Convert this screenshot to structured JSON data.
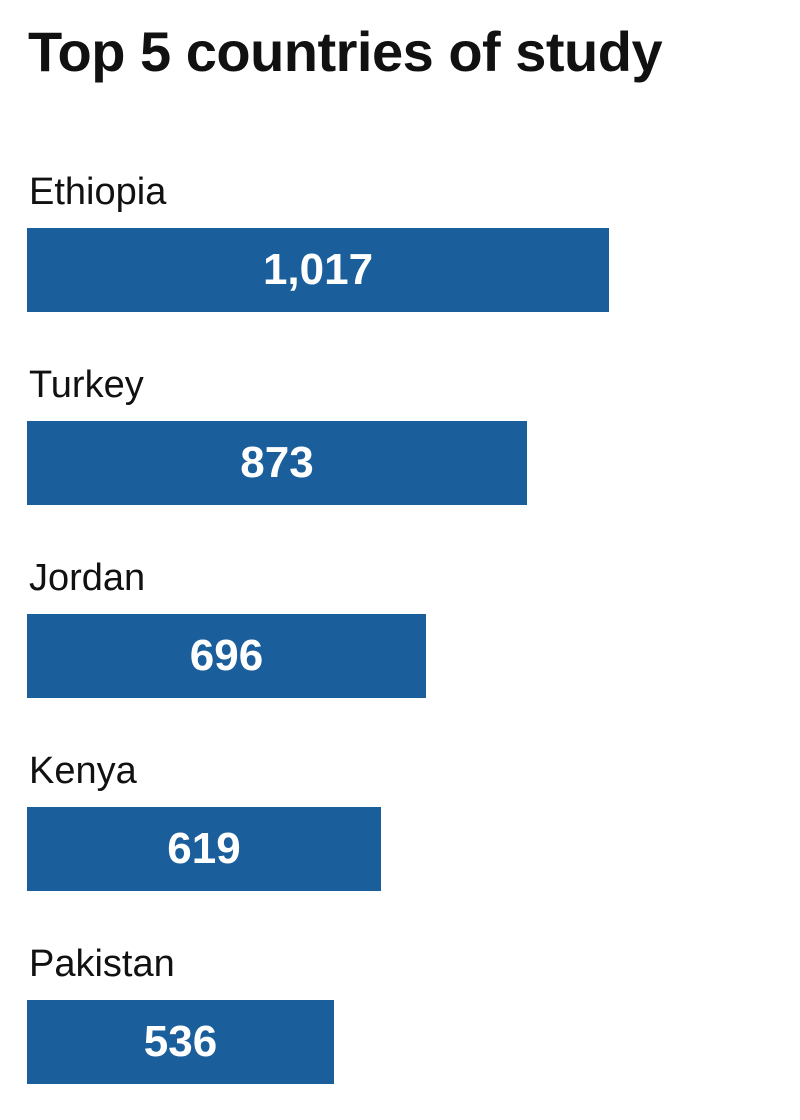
{
  "chart_data": {
    "type": "bar",
    "orientation": "horizontal",
    "title": "Top 5 countries of study",
    "categories": [
      "Ethiopia",
      "Turkey",
      "Jordan",
      "Kenya",
      "Pakistan"
    ],
    "values": [
      1017,
      873,
      696,
      619,
      536
    ],
    "value_labels": [
      "1,017",
      "873",
      "696",
      "619",
      "536"
    ],
    "xlim": [
      0,
      1350
    ],
    "grid": false,
    "legend": "none",
    "bar_color": "#1a5f9c"
  }
}
